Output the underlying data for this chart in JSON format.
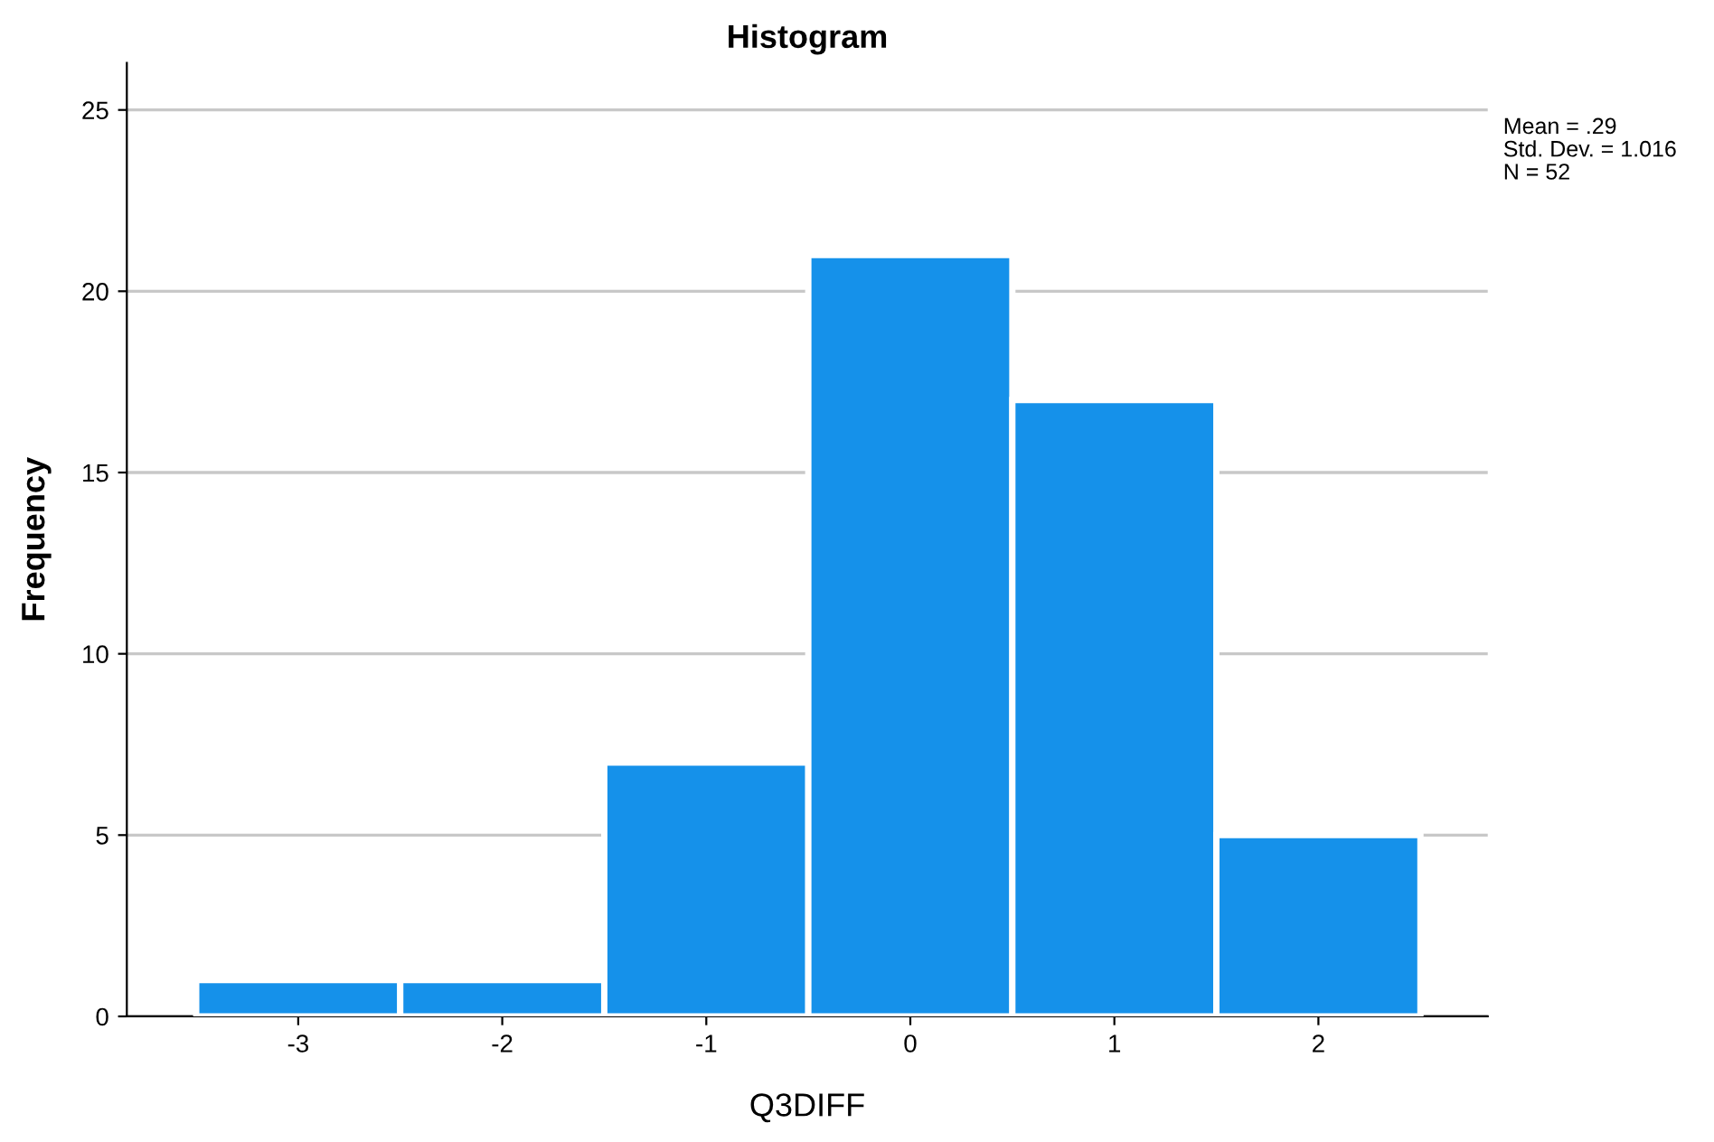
{
  "chart_data": {
    "type": "histogram",
    "title": "Histogram",
    "xlabel": "Q3DIFF",
    "ylabel": "Frequency",
    "bins": [
      -3.5,
      -2.5,
      -1.5,
      -0.5,
      0.5,
      1.5,
      2.5
    ],
    "values": [
      1,
      1,
      7,
      21,
      17,
      5
    ],
    "color": "#1591ea",
    "xlim": [
      -3.84,
      2.83
    ],
    "xticks": [
      -3,
      -2,
      -1,
      0,
      1,
      2
    ],
    "ylim": [
      0,
      26.3
    ],
    "yticks": [
      0,
      5,
      10,
      15,
      20,
      25
    ],
    "grid": "y",
    "annotations": [
      "Mean = .29",
      "Std. Dev. = 1.016",
      "N = 52"
    ]
  }
}
